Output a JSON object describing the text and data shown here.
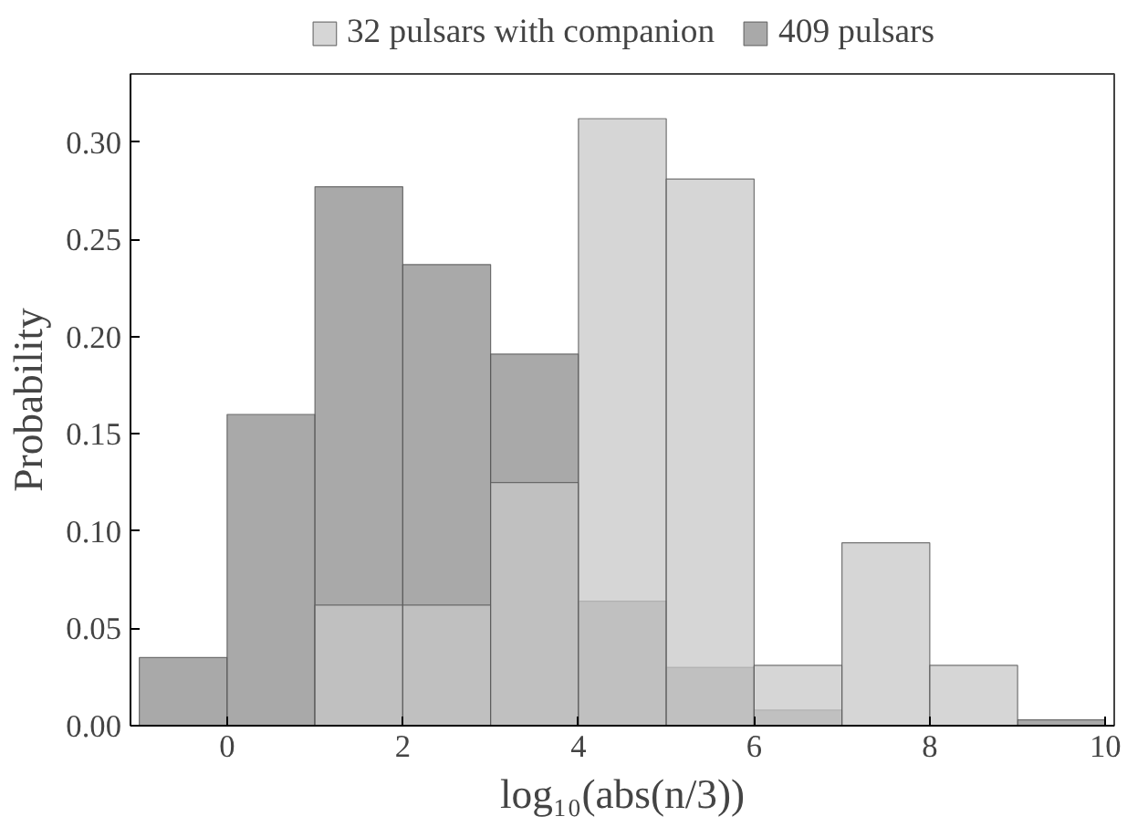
{
  "chart_data": {
    "type": "histogram",
    "xlabel": "log₁₀(abs(n/3))",
    "ylabel": "Probability",
    "bins": [
      -1,
      0,
      1,
      2,
      3,
      4,
      5,
      6,
      7,
      8,
      9,
      10
    ],
    "series": [
      {
        "name": "32 pulsars with companion",
        "color": "#c8c8c8",
        "values": [
          0,
          0,
          0.062,
          0.062,
          0.125,
          0.312,
          0.281,
          0.031,
          0.094,
          0.031,
          0
        ]
      },
      {
        "name": "409 pulsars",
        "color": "#8c8c8c",
        "values": [
          0.035,
          0.16,
          0.277,
          0.237,
          0.191,
          0.064,
          0.03,
          0.008,
          0,
          0,
          0.003
        ]
      }
    ],
    "xlim": [
      -1.1,
      10.1
    ],
    "ylim": [
      0,
      0.335
    ],
    "xticks": [
      0,
      2,
      4,
      6,
      8,
      10
    ],
    "yticks": [
      {
        "value": 0,
        "label": "0.00"
      },
      {
        "value": 0.05,
        "label": "0.05"
      },
      {
        "value": 0.1,
        "label": "0.10"
      },
      {
        "value": 0.15,
        "label": "0.15"
      },
      {
        "value": 0.2,
        "label": "0.20"
      },
      {
        "value": 0.25,
        "label": "0.25"
      },
      {
        "value": 0.3,
        "label": "0.30"
      }
    ],
    "grid": false,
    "legend": "top"
  }
}
